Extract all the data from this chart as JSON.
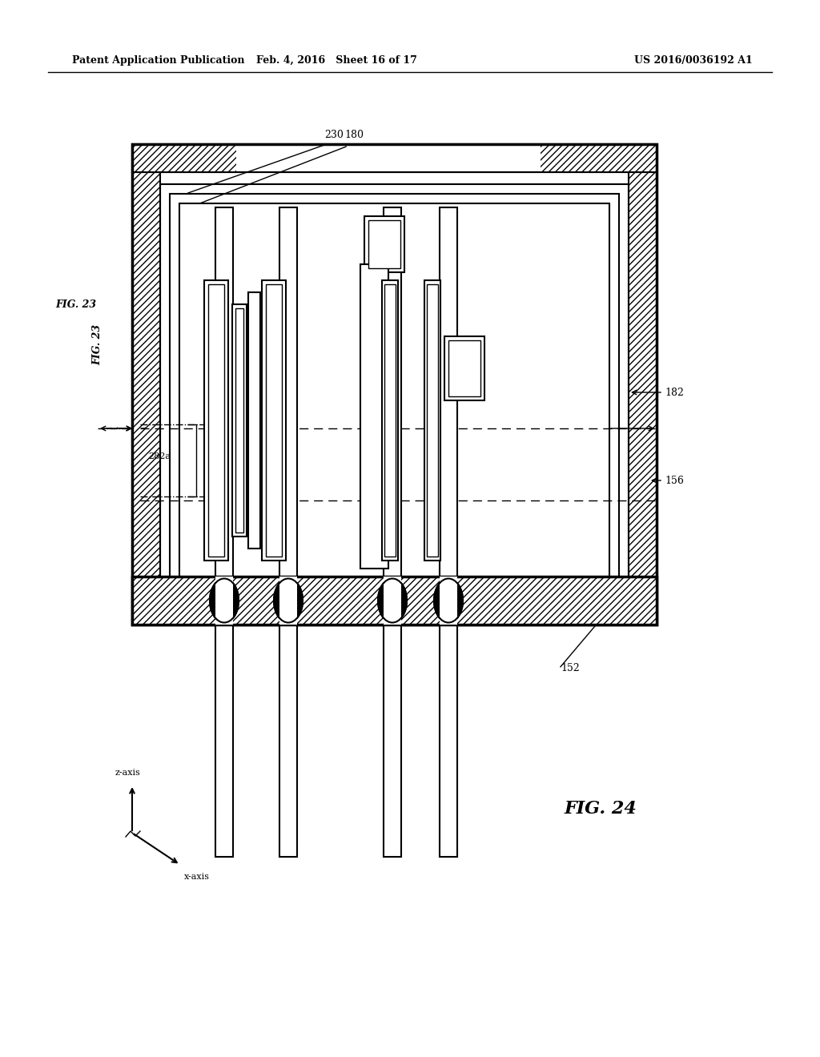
{
  "header_left": "Patent Application Publication",
  "header_center": "Feb. 4, 2016   Sheet 16 of 17",
  "header_right": "US 2016/0036192 A1",
  "fig_label": "FIG. 24",
  "fig23_label": "FIG. 23",
  "bg_color": "#ffffff",
  "line_color": "#000000",
  "hatch_color": "#000000",
  "light_gray": "#cccccc",
  "medium_gray": "#888888"
}
